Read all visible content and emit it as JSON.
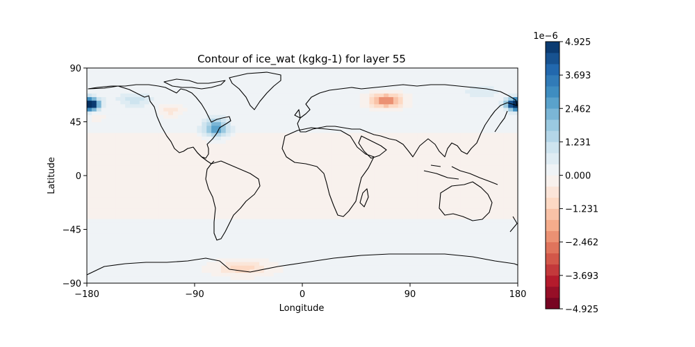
{
  "chart_data": {
    "type": "heatmap",
    "title": "Contour of ice_wat (kgkg-1) for layer 55",
    "xlabel": "Longitude",
    "ylabel": "Latitude",
    "xlim": [
      -180,
      180
    ],
    "ylim": [
      -90,
      90
    ],
    "xticks": [
      -180,
      -90,
      0,
      90,
      180
    ],
    "yticks": [
      -90,
      -45,
      0,
      45,
      90
    ],
    "xtick_labels": [
      "−180",
      "−90",
      "0",
      "90",
      "180"
    ],
    "ytick_labels": [
      "−90",
      "−45",
      "0",
      "45",
      "90"
    ],
    "colormap": "RdBu",
    "colorbar": {
      "scale_label": "1e−6",
      "range": [
        -4.925,
        4.925
      ],
      "levels": 24,
      "tick_values": [
        4.925,
        3.693,
        2.462,
        1.231,
        0.0,
        -1.231,
        -2.462,
        -3.693,
        -4.925
      ],
      "tick_labels": [
        "4.925",
        "3.693",
        "2.462",
        "1.231",
        "0.000",
        "−1.231",
        "−2.462",
        "−3.693",
        "−4.925"
      ]
    },
    "background_level": 0.2,
    "features": [
      {
        "lon": -178,
        "lat": 60,
        "value": 3.4,
        "sigma_lon": 6,
        "sigma_lat": 4
      },
      {
        "lon": 179,
        "lat": 60,
        "value": 4.4,
        "sigma_lon": 6,
        "sigma_lat": 3
      },
      {
        "lon": -72,
        "lat": 40,
        "value": 2.8,
        "sigma_lon": 7,
        "sigma_lat": 5
      },
      {
        "lon": -140,
        "lat": 64,
        "value": 1.0,
        "sigma_lon": 10,
        "sigma_lat": 4
      },
      {
        "lon": 70,
        "lat": 63,
        "value": -2.6,
        "sigma_lon": 9,
        "sigma_lat": 4
      },
      {
        "lon": -110,
        "lat": 55,
        "value": -0.9,
        "sigma_lon": 6,
        "sigma_lat": 3
      },
      {
        "lon": -50,
        "lat": -77,
        "value": -1.2,
        "sigma_lon": 15,
        "sigma_lat": 4
      },
      {
        "lon": -172,
        "lat": 50,
        "value": -0.6,
        "sigma_lon": 4,
        "sigma_lat": 3
      },
      {
        "lon": 150,
        "lat": 70,
        "value": 0.6,
        "sigma_lon": 12,
        "sigma_lat": 4
      }
    ]
  }
}
